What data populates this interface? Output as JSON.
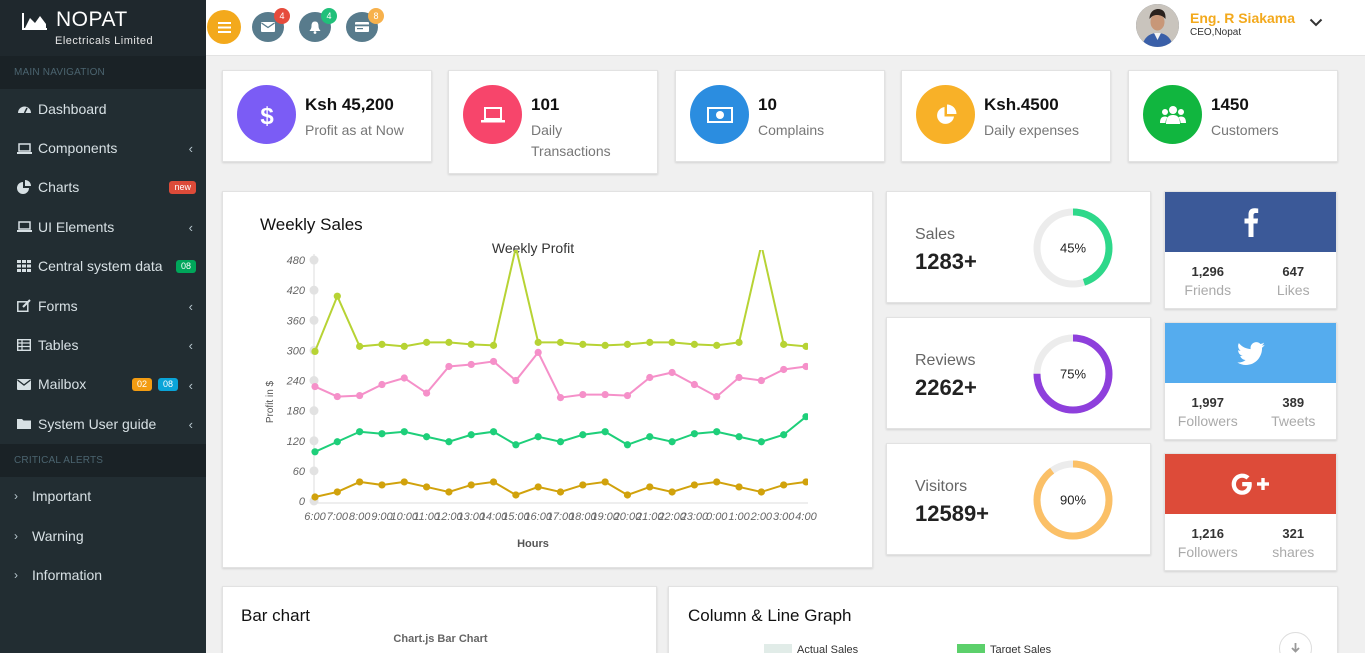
{
  "brand": {
    "name": "NOPAT",
    "subtitle": "Electricals Limited"
  },
  "sidebar": {
    "main_header": "MAIN NAVIGATION",
    "items": [
      {
        "label": "Dashboard",
        "icon": "dashboard-icon"
      },
      {
        "label": "Components",
        "icon": "laptop-icon"
      },
      {
        "label": "Charts",
        "icon": "pie-chart-icon",
        "badge": "new"
      },
      {
        "label": "UI Elements",
        "icon": "laptop-icon"
      },
      {
        "label": "Central system data",
        "icon": "grid-icon",
        "badge": "08"
      },
      {
        "label": "Forms",
        "icon": "edit-icon"
      },
      {
        "label": "Tables",
        "icon": "table-icon"
      },
      {
        "label": "Mailbox",
        "icon": "envelope-icon",
        "badges": [
          "02",
          "08"
        ]
      },
      {
        "label": "System User guide",
        "icon": "folder-icon"
      }
    ],
    "alerts_header": "CRITICAL ALERTS",
    "alerts": [
      "Important",
      "Warning",
      "Information"
    ]
  },
  "topbar": {
    "mail_count": "4",
    "bell_count": "4",
    "card_count": "8",
    "user_name": "Eng. R Siakama",
    "user_role": "CEO,Nopat"
  },
  "stats": [
    {
      "value": "Ksh 45,200",
      "label": "Profit as at Now",
      "color": "#7b5cf5",
      "icon": "dollar-icon"
    },
    {
      "value": "101",
      "label": "Daily Transactions",
      "color": "#f7456b",
      "icon": "laptop-icon"
    },
    {
      "value": "10",
      "label": "Complains",
      "color": "#2b8de0",
      "icon": "money-icon"
    },
    {
      "value": "Ksh.4500",
      "label": "Daily expenses",
      "color": "#f8b128",
      "icon": "pie-chart-icon"
    },
    {
      "value": "1450",
      "label": "Customers",
      "color": "#11b63f",
      "icon": "users-icon"
    }
  ],
  "weekly": {
    "panel_title": "Weekly Sales"
  },
  "gauges": [
    {
      "label": "Sales",
      "value": "1283+",
      "percent": 45,
      "pct_text": "45%",
      "color": "#2ed88a"
    },
    {
      "label": "Reviews",
      "value": "2262+",
      "percent": 75,
      "pct_text": "75%",
      "color": "#8e3fdc"
    },
    {
      "label": "Visitors",
      "value": "12589+",
      "percent": 90,
      "pct_text": "90%",
      "color": "#fbc067"
    }
  ],
  "social": [
    {
      "network": "facebook",
      "icon": "facebook-icon",
      "color": "#3b5998",
      "a_num": "1,296",
      "a_lab": "Friends",
      "b_num": "647",
      "b_lab": "Likes"
    },
    {
      "network": "twitter",
      "icon": "twitter-icon",
      "color": "#55acee",
      "a_num": "1,997",
      "a_lab": "Followers",
      "b_num": "389",
      "b_lab": "Tweets"
    },
    {
      "network": "google-plus",
      "icon": "google-plus-icon",
      "color": "#dd4b39",
      "a_num": "1,216",
      "a_lab": "Followers",
      "b_num": "321",
      "b_lab": "shares"
    }
  ],
  "bottom": {
    "bar_title": "Bar chart",
    "bar_subtitle": "Chart.js Bar Chart",
    "column_title": "Column & Line Graph",
    "legend_actual": "Actual Sales",
    "legend_target": "Target Sales"
  },
  "chart_data": {
    "type": "line",
    "title": "Weekly Profit",
    "xlabel": "Hours",
    "ylabel": "Profit in $",
    "ylim": [
      0,
      500
    ],
    "yticks": [
      0,
      60,
      120,
      180,
      240,
      300,
      360,
      420,
      480
    ],
    "categories": [
      "6:00",
      "7:00",
      "8:00",
      "9:00",
      "10:00",
      "11:00",
      "12:00",
      "13:00",
      "14:00",
      "15:00",
      "16:00",
      "17:00",
      "18:00",
      "19:00",
      "20:00",
      "21:00",
      "22:00",
      "23:00",
      "0:00",
      "1:00",
      "2:00",
      "3:00",
      "4:00"
    ],
    "tick_labels": [
      "6:00",
      "7:00",
      "8:00",
      "9:00",
      "10:00",
      "11:00",
      "12:00",
      "13:00",
      "14:00",
      "15:00",
      "16:00",
      "17:00",
      "18:00",
      "19:00",
      "20:00",
      "21:00",
      "22:00",
      "23:00",
      "0:00",
      "1:00",
      "2:00",
      "3:00",
      "4:00"
    ],
    "series": [
      {
        "color": "#b7d334",
        "values": [
          298,
          408,
          308,
          312,
          308,
          316,
          316,
          312,
          310,
          505,
          316,
          316,
          312,
          310,
          312,
          316,
          316,
          312,
          310,
          316,
          510,
          312,
          308
        ]
      },
      {
        "color": "#f590c9",
        "values": [
          228,
          208,
          210,
          232,
          245,
          215,
          268,
          272,
          278,
          240,
          296,
          206,
          212,
          212,
          210,
          246,
          256,
          232,
          208,
          246,
          240,
          262,
          268
        ]
      },
      {
        "color": "#1ecf7a",
        "values": [
          98,
          118,
          138,
          134,
          138,
          128,
          118,
          132,
          138,
          112,
          128,
          118,
          132,
          138,
          112,
          128,
          118,
          134,
          138,
          128,
          118,
          132,
          168
        ]
      },
      {
        "color": "#d1a20c",
        "values": [
          8,
          18,
          38,
          32,
          38,
          28,
          18,
          32,
          38,
          12,
          28,
          18,
          32,
          38,
          12,
          28,
          18,
          32,
          38,
          28,
          18,
          32,
          38
        ]
      }
    ]
  }
}
